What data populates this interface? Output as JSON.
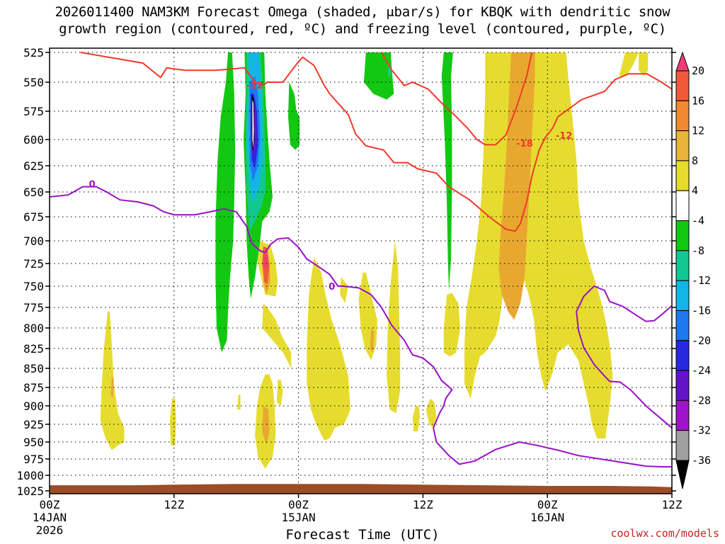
{
  "title": {
    "line1": "2026011400 NAM3KM Forecast Omega (shaded, μbar/s) for KBQK with dendritic snow",
    "line2": "growth region (contoured, red, ºC) and freezing level (contoured, purple, ºC)"
  },
  "credit": "coolwx.com/models",
  "colors": {
    "temp_contour": "#ee3a2a",
    "freezing_contour": "#9a10c8",
    "terrain": "#9c4d24",
    "green": "#12c812",
    "yellow": "#e6dc30",
    "orange": "#e8a830"
  },
  "chart_data": {
    "type": "heatmap",
    "title": "2026011400 NAM3KM Forecast Omega (shaded, μbar/s) for KBQK with dendritic snow growth region (contoured, red, ºC) and freezing level (contoured, purple, ºC)",
    "xlabel": "Forecast Time (UTC)",
    "ylabel": "",
    "x_range_hours": [
      0,
      60
    ],
    "y_axis": "pressure (mb), inverted",
    "y_range": [
      1025,
      525
    ],
    "x_ticks": [
      {
        "hour": 0,
        "label1": "00Z",
        "label2": "14JAN",
        "label3": "2026"
      },
      {
        "hour": 12,
        "label1": "12Z",
        "label2": "",
        "label3": ""
      },
      {
        "hour": 24,
        "label1": "00Z",
        "label2": "15JAN",
        "label3": ""
      },
      {
        "hour": 36,
        "label1": "12Z",
        "label2": "",
        "label3": ""
      },
      {
        "hour": 48,
        "label1": "00Z",
        "label2": "16JAN",
        "label3": ""
      },
      {
        "hour": 60,
        "label1": "12Z",
        "label2": "",
        "label3": ""
      }
    ],
    "y_ticks": [
      "525",
      "550",
      "575",
      "600",
      "625",
      "650",
      "675",
      "700",
      "725",
      "750",
      "775",
      "800",
      "825",
      "850",
      "875",
      "900",
      "925",
      "950",
      "975",
      "1000",
      "1025"
    ],
    "colorbar": {
      "levels": [
        "20",
        "16",
        "12",
        "8",
        "4",
        "-4",
        "-8",
        "-12",
        "-16",
        "-20",
        "-24",
        "-28",
        "-32",
        "-36"
      ],
      "colors": [
        "#f03c78",
        "#f05a3c",
        "#f08a30",
        "#e8b43c",
        "#e6dc30",
        "#ffffff",
        "#12c812",
        "#12c890",
        "#14b4e6",
        "#1e78f0",
        "#2828dc",
        "#6414c8",
        "#a014c8",
        "#a0a0a0",
        "#000000"
      ]
    },
    "grid": true,
    "contours": {
      "dendritic_red": [
        {
          "label": "-12",
          "label_at": [
            19.0,
            553
          ],
          "points": [
            [
              3.0,
              525
            ],
            [
              9.0,
              534
            ],
            [
              10.7,
              546
            ],
            [
              11.3,
              538
            ],
            [
              13.0,
              540
            ],
            [
              16.0,
              540
            ],
            [
              18.8,
              538
            ],
            [
              19.8,
              550
            ],
            [
              20.5,
              553
            ],
            [
              21.0,
              550
            ],
            [
              22.5,
              550
            ],
            [
              23.8,
              535
            ],
            [
              24.4,
              529
            ],
            [
              25.5,
              536
            ],
            [
              26.5,
              553
            ],
            [
              27.0,
              560
            ],
            [
              28.8,
              578
            ],
            [
              29.5,
              595
            ],
            [
              30.5,
              606
            ],
            [
              32.2,
              610
            ],
            [
              33.2,
              622
            ],
            [
              34.5,
              622
            ],
            [
              35.5,
              628
            ],
            [
              37.3,
              632
            ],
            [
              38.5,
              645
            ],
            [
              40.5,
              658
            ],
            [
              42.5,
              676
            ],
            [
              44.0,
              688
            ],
            [
              44.9,
              690
            ],
            [
              45.4,
              682
            ],
            [
              46.0,
              660
            ],
            [
              46.5,
              635
            ],
            [
              47.2,
              610
            ],
            [
              47.8,
              598
            ],
            [
              48.5,
              590
            ],
            [
              49.0,
              580
            ],
            [
              51.3,
              565
            ],
            [
              53.5,
              558
            ],
            [
              54.5,
              548
            ],
            [
              55.8,
              543
            ],
            [
              57.6,
              543
            ],
            [
              59.0,
              550
            ],
            [
              60.0,
              556
            ]
          ]
        },
        {
          "label": "-18",
          "label_at": [
            45.0,
            604
          ],
          "points": [
            [
              32.0,
              525
            ],
            [
              33.0,
              540
            ],
            [
              34.2,
              553
            ],
            [
              35.0,
              550
            ],
            [
              36.5,
              556
            ],
            [
              37.8,
              568
            ],
            [
              39.0,
              578
            ],
            [
              40.3,
              590
            ],
            [
              41.2,
              600
            ],
            [
              42.0,
              605
            ],
            [
              43.0,
              605
            ],
            [
              44.0,
              596
            ],
            [
              45.0,
              572
            ],
            [
              46.0,
              545
            ],
            [
              46.5,
              525
            ]
          ]
        },
        {
          "label": "-12",
          "label_at": [
            48.8,
            597
          ],
          "points": []
        }
      ],
      "freezing_purple": [
        {
          "label": "0",
          "label_at": [
            3.8,
            643
          ],
          "points": [
            [
              0,
              655
            ],
            [
              1.8,
              653
            ],
            [
              3.2,
              645
            ],
            [
              4.5,
              645
            ],
            [
              5.5,
              650
            ],
            [
              6.8,
              658
            ],
            [
              8.5,
              660
            ],
            [
              10.0,
              664
            ],
            [
              11.0,
              670
            ],
            [
              12.0,
              673
            ],
            [
              14.0,
              673
            ],
            [
              15.5,
              670
            ],
            [
              16.8,
              667
            ],
            [
              18.0,
              670
            ],
            [
              19.0,
              685
            ],
            [
              19.5,
              703
            ],
            [
              20.3,
              711
            ],
            [
              20.8,
              713
            ],
            [
              21.3,
              704
            ],
            [
              22.0,
              698
            ],
            [
              23.0,
              697
            ],
            [
              24.0,
              707
            ],
            [
              24.8,
              720
            ],
            [
              26.0,
              729
            ],
            [
              27.0,
              737
            ],
            [
              27.8,
              750
            ],
            [
              28.3,
              750
            ],
            [
              29.8,
              752
            ],
            [
              31.0,
              760
            ],
            [
              32.0,
              775
            ],
            [
              33.0,
              797
            ],
            [
              34.2,
              815
            ],
            [
              35.0,
              833
            ],
            [
              36.0,
              837
            ],
            [
              37.0,
              848
            ],
            [
              37.8,
              866
            ],
            [
              38.8,
              878
            ],
            [
              38.2,
              890
            ],
            [
              38.0,
              900
            ],
            [
              37.6,
              910
            ],
            [
              37.0,
              930
            ],
            [
              37.3,
              950
            ],
            [
              38.5,
              970
            ],
            [
              39.5,
              983
            ],
            [
              41.0,
              978
            ],
            [
              43.0,
              961
            ],
            [
              45.3,
              950
            ],
            [
              47.0,
              955
            ],
            [
              49.0,
              962
            ],
            [
              51.0,
              970
            ],
            [
              53.5,
              976
            ],
            [
              55.5,
              981
            ],
            [
              57.5,
              986
            ],
            [
              59.0,
              987
            ],
            [
              60.0,
              987
            ]
          ]
        },
        {
          "label": "0",
          "label_at": [
            26.9,
            751
          ],
          "points": []
        },
        {
          "label": "",
          "label_at": null,
          "points": [
            [
              60.0,
              930
            ],
            [
              59.0,
              918
            ],
            [
              57.5,
              900
            ],
            [
              56.0,
              878
            ],
            [
              55.0,
              868
            ],
            [
              54.0,
              867
            ],
            [
              53.5,
              860
            ],
            [
              52.5,
              845
            ],
            [
              51.5,
              824
            ],
            [
              51.0,
              803
            ],
            [
              50.8,
              780
            ],
            [
              51.5,
              762
            ],
            [
              52.5,
              750
            ],
            [
              53.5,
              755
            ],
            [
              54.0,
              768
            ],
            [
              55.3,
              774
            ],
            [
              56.5,
              784
            ],
            [
              57.5,
              792
            ],
            [
              58.3,
              791
            ],
            [
              59.0,
              784
            ],
            [
              60.0,
              773
            ]
          ]
        }
      ]
    }
  }
}
